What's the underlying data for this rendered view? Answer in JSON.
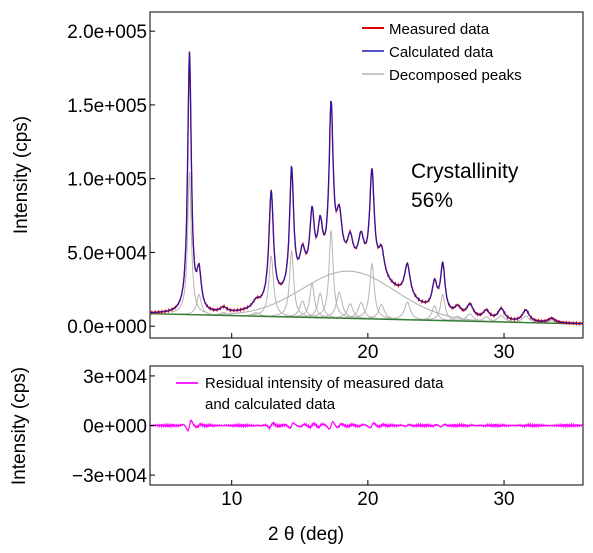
{
  "chart_data": [
    {
      "type": "line",
      "panel": "main",
      "ylabel": "Intensity (cps)",
      "xlim": [
        4,
        35.8
      ],
      "ylim": [
        -8000,
        213000
      ],
      "xticks": [
        10,
        20,
        30
      ],
      "yticks": [
        0,
        50000,
        100000,
        150000,
        200000
      ],
      "ytick_labels": [
        "0.0e+000",
        "5.0e+004",
        "1.0e+005",
        "1.5e+005",
        "2.0e+005"
      ],
      "legend_position": "top-right",
      "annotation": {
        "line1": "Crystallinity",
        "line2": "56%"
      },
      "colors": {
        "measured": "#e00000",
        "calculated": "#1a1ab4",
        "decomposed": "#b4b4b4",
        "background": "#2e7d32"
      },
      "series": [
        {
          "name": "Measured data",
          "role": "measured",
          "baseline": [
            [
              4,
              8500
            ],
            [
              36,
              1500
            ]
          ],
          "peaks": [
            [
              6.9,
              176000,
              0.16
            ],
            [
              7.6,
              25000,
              0.2
            ],
            [
              9.4,
              3500,
              0.3
            ],
            [
              11.8,
              4500,
              0.3
            ],
            [
              12.9,
              75000,
              0.2
            ],
            [
              14.4,
              82000,
              0.18
            ],
            [
              15.2,
              20000,
              0.25
            ],
            [
              15.9,
              42000,
              0.2
            ],
            [
              16.5,
              30000,
              0.22
            ],
            [
              17.3,
              108000,
              0.18
            ],
            [
              17.9,
              32000,
              0.25
            ],
            [
              18.7,
              18000,
              0.25
            ],
            [
              19.5,
              20000,
              0.25
            ],
            [
              20.3,
              68000,
              0.2
            ],
            [
              21.0,
              18000,
              0.25
            ],
            [
              22.9,
              22000,
              0.25
            ],
            [
              24.9,
              18000,
              0.22
            ],
            [
              25.5,
              32000,
              0.2
            ],
            [
              26.6,
              6000,
              0.3
            ],
            [
              27.5,
              9000,
              0.3
            ],
            [
              28.7,
              6000,
              0.3
            ],
            [
              29.8,
              8000,
              0.3
            ],
            [
              31.6,
              8000,
              0.3
            ],
            [
              33.5,
              3000,
              0.3
            ]
          ],
          "amorphous": {
            "center": 18.6,
            "height": 32000,
            "width": 3.4
          }
        },
        {
          "name": "Calculated data",
          "role": "calculated"
        },
        {
          "name": "Decomposed peaks",
          "role": "decomposed"
        }
      ]
    },
    {
      "type": "line",
      "panel": "residual",
      "xlabel": "2 θ (deg)",
      "ylabel": "Intensity (cps)",
      "xlim": [
        4,
        35.8
      ],
      "ylim": [
        -36000,
        36000
      ],
      "xticks": [
        10,
        20,
        30
      ],
      "yticks": [
        -30000,
        0,
        30000
      ],
      "ytick_labels": [
        "−3e+004",
        "0e+000",
        "3e+004"
      ],
      "colors": {
        "residual": "#ff00ff"
      },
      "series": [
        {
          "name": "Residual intensity of measured data and calculated data",
          "legend_line1": "Residual intensity of measured data",
          "legend_line2": "and calculated data"
        }
      ]
    }
  ]
}
